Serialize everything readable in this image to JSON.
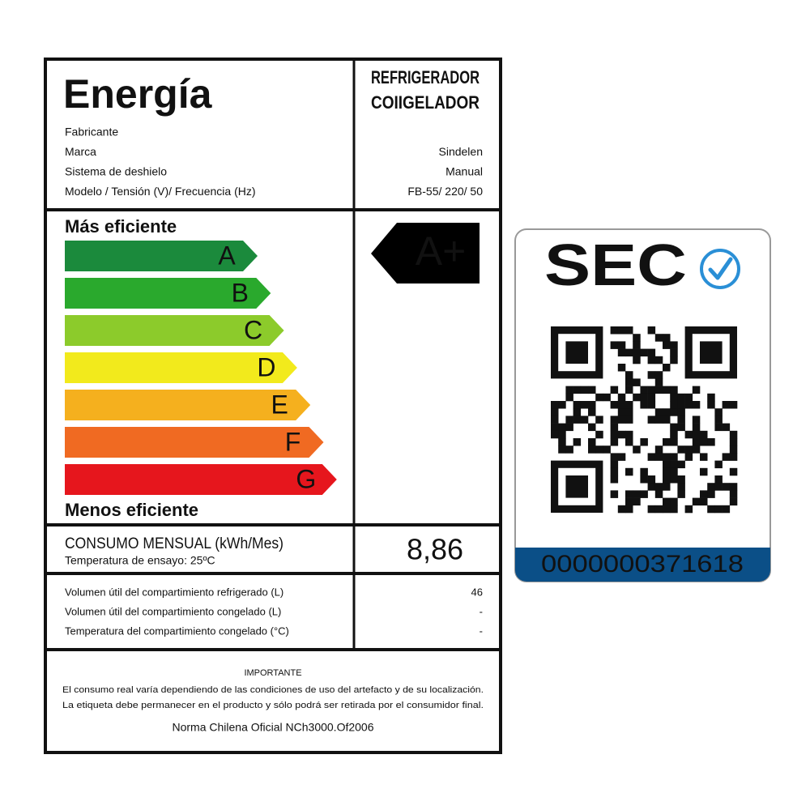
{
  "header": {
    "title": "Energía",
    "product_type": [
      "REFRIGERADOR",
      "COIIGELADOR"
    ],
    "fields": [
      {
        "label": "Fabricante"
      },
      {
        "label": "Marca",
        "value": "Sindelen"
      },
      {
        "label": "Sistema de deshielo",
        "value": "Manual"
      },
      {
        "label": "Modelo / Tensión (V)/ Frecuencia (Hz)",
        "value": "FB-55/ 220/ 50"
      }
    ]
  },
  "scale": {
    "top_label": "Más eficiente",
    "bottom_label": "Menos eficiente",
    "grades": [
      {
        "letter": "A",
        "color": "#1b8a3c"
      },
      {
        "letter": "B",
        "color": "#2aa92d"
      },
      {
        "letter": "C",
        "color": "#8ccb2b"
      },
      {
        "letter": "D",
        "color": "#f2ea1c"
      },
      {
        "letter": "E",
        "color": "#f5b01e"
      },
      {
        "letter": "F",
        "color": "#f06a22"
      },
      {
        "letter": "G",
        "color": "#e6161d"
      }
    ],
    "rating": "A+"
  },
  "consumption": {
    "label": "CONSUMO MENSUAL (kWh/Mes)",
    "note": "Temperatura de ensayo: 25ºC",
    "value": "8,86"
  },
  "specs": [
    {
      "label": "Volumen útil del compartimiento refrigerado (L)",
      "value": "46"
    },
    {
      "label": "Volumen útil del compartimiento congelado (L)",
      "value": "-"
    },
    {
      "label": "Temperatura del compartimiento congelado (°C)",
      "value": "-"
    }
  ],
  "important": {
    "title": "IMPORTANTE",
    "lines": [
      "El consumo real varía dependiendo de las condiciones de uso del artefacto y de su localización.",
      "La etiqueta debe permanecer en el producto y sólo podrá ser retirada por el consumidor final."
    ],
    "norm": "Norma Chilena Oficial NCh3000.Of2006"
  },
  "sec": {
    "logo": "SEC",
    "code": "0000000371618"
  }
}
